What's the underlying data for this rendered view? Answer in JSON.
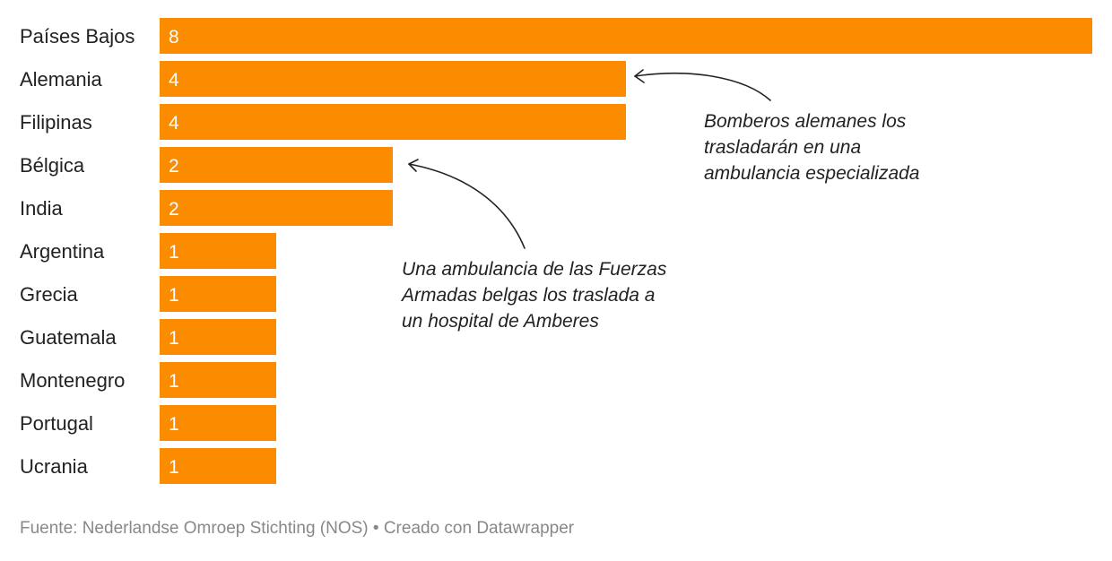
{
  "chart_data": {
    "type": "bar",
    "orientation": "horizontal",
    "categories": [
      "Países Bajos",
      "Alemania",
      "Filipinas",
      "Bélgica",
      "India",
      "Argentina",
      "Grecia",
      "Guatemala",
      "Montenegro",
      "Portugal",
      "Ucrania"
    ],
    "values": [
      8,
      4,
      4,
      2,
      2,
      1,
      1,
      1,
      1,
      1,
      1
    ],
    "xlim": [
      0,
      8
    ],
    "grid": false,
    "legend": "none",
    "bar_color": "#fb8c00",
    "annotations": [
      {
        "target": "Alemania",
        "lines": [
          "Bomberos alemanes los",
          "trasladarán en una",
          "ambulancia especializada"
        ]
      },
      {
        "target": "Bélgica",
        "lines": [
          "Una ambulancia de las Fuerzas",
          "Armadas belgas los traslada a",
          "un hospital de Amberes"
        ]
      }
    ]
  },
  "footer": {
    "text": "Fuente: Nederlandse Omroep Stichting (NOS) • Creado con Datawrapper"
  }
}
